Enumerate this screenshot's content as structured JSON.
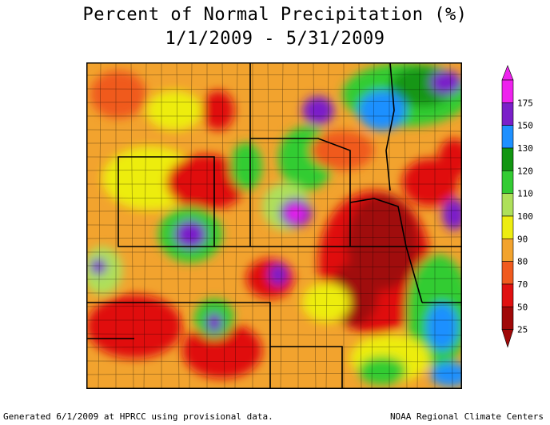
{
  "title": {
    "line1": "Percent of Normal Precipitation (%)",
    "line2": "1/1/2009 - 5/31/2009"
  },
  "legend": {
    "levels": [
      {
        "label": "175",
        "color": "#ee22ee"
      },
      {
        "label": "150",
        "color": "#7a1fc9"
      },
      {
        "label": "130",
        "color": "#1e90ff"
      },
      {
        "label": "120",
        "color": "#129612"
      },
      {
        "label": "110",
        "color": "#33cc33"
      },
      {
        "label": "100",
        "color": "#aee05a"
      },
      {
        "label": "90",
        "color": "#eded10"
      },
      {
        "label": "80",
        "color": "#f2a32e"
      },
      {
        "label": "70",
        "color": "#f05a1e"
      },
      {
        "label": "50",
        "color": "#e01010"
      },
      {
        "label": "25",
        "color": "#a00808"
      }
    ]
  },
  "map": {
    "base_color": "#f2a32e",
    "border_color": "#000000"
  },
  "footer": {
    "left": "Generated 6/1/2009 at HPRCC using provisional data.",
    "right": "NOAA Regional Climate Centers"
  }
}
